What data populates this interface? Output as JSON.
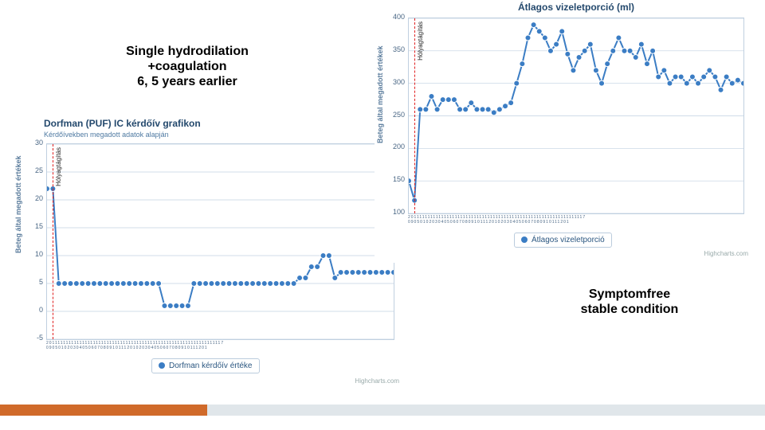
{
  "annotations": {
    "top_left": "Single hydrodilation\n+coagulation\n6, 5 years earlier",
    "bottom_right": "Symptomfree\nstable condition"
  },
  "chart_left": {
    "type": "line",
    "title": "Dorfman (PUF) IC kérdőív grafikon",
    "subtitle": "Kérdőívekben megadott adatok alapján",
    "ylabel": "Beteg által megadott értékek",
    "ylim": [
      -5,
      30
    ],
    "ytick_step": 5,
    "background_color": "#ffffff",
    "grid_color": "#c0d0e0",
    "line_color": "#3b7dc4",
    "marker_color": "#3b7dc4",
    "marker_size": 3.5,
    "line_width": 2,
    "red_marker": {
      "x_index": 1,
      "label": "Hólyagtágítás",
      "color": "#e02020"
    },
    "xaxis_text": "20111111111111111111111111111111111111111111111111111111111111117\n090501020304050607080910111201020304050607080910111201",
    "series": [
      22,
      22,
      5,
      5,
      5,
      5,
      5,
      5,
      5,
      5,
      5,
      5,
      5,
      5,
      5,
      5,
      5,
      5,
      5,
      5,
      1,
      1,
      1,
      1,
      1,
      5,
      5,
      5,
      5,
      5,
      5,
      5,
      5,
      5,
      5,
      5,
      5,
      5,
      5,
      5,
      5,
      5,
      5,
      6,
      6,
      8,
      8,
      10,
      10,
      6,
      7,
      7,
      7,
      7,
      7,
      7,
      7,
      7,
      7,
      7
    ],
    "legend": "Dorfman kérdőív értéke",
    "credit": "Highcharts.com",
    "title_fontsize": 12,
    "subtitle_fontsize": 9,
    "label_fontsize": 9
  },
  "chart_right": {
    "type": "line",
    "title": "Átlagos vizeletporció (ml)",
    "ylabel": "Beteg által megadott értékek",
    "ylim": [
      100,
      400
    ],
    "ytick_step": 50,
    "background_color": "#ffffff",
    "grid_color": "#c0d0e0",
    "line_color": "#3b7dc4",
    "marker_color": "#3b7dc4",
    "marker_size": 3.5,
    "line_width": 2,
    "red_marker": {
      "x_index": 1,
      "label": "Hólyagtágítás",
      "color": "#e02020"
    },
    "xaxis_text": "20111111111111111111111111111111111111111111111111111111111111117\n090501020304050607080910111201020304050607080910111201",
    "series": [
      150,
      120,
      260,
      260,
      280,
      260,
      275,
      275,
      275,
      260,
      260,
      270,
      260,
      260,
      260,
      255,
      260,
      265,
      270,
      300,
      330,
      370,
      390,
      380,
      370,
      350,
      360,
      380,
      345,
      320,
      340,
      350,
      360,
      320,
      300,
      330,
      350,
      370,
      350,
      350,
      340,
      360,
      330,
      350,
      310,
      320,
      300,
      310,
      310,
      300,
      310,
      300,
      310,
      320,
      310,
      290,
      310,
      300,
      305,
      300
    ],
    "legend": "Átlagos vizeletporció",
    "credit": "Highcharts.com",
    "title_fontsize": 12,
    "label_fontsize": 9
  }
}
